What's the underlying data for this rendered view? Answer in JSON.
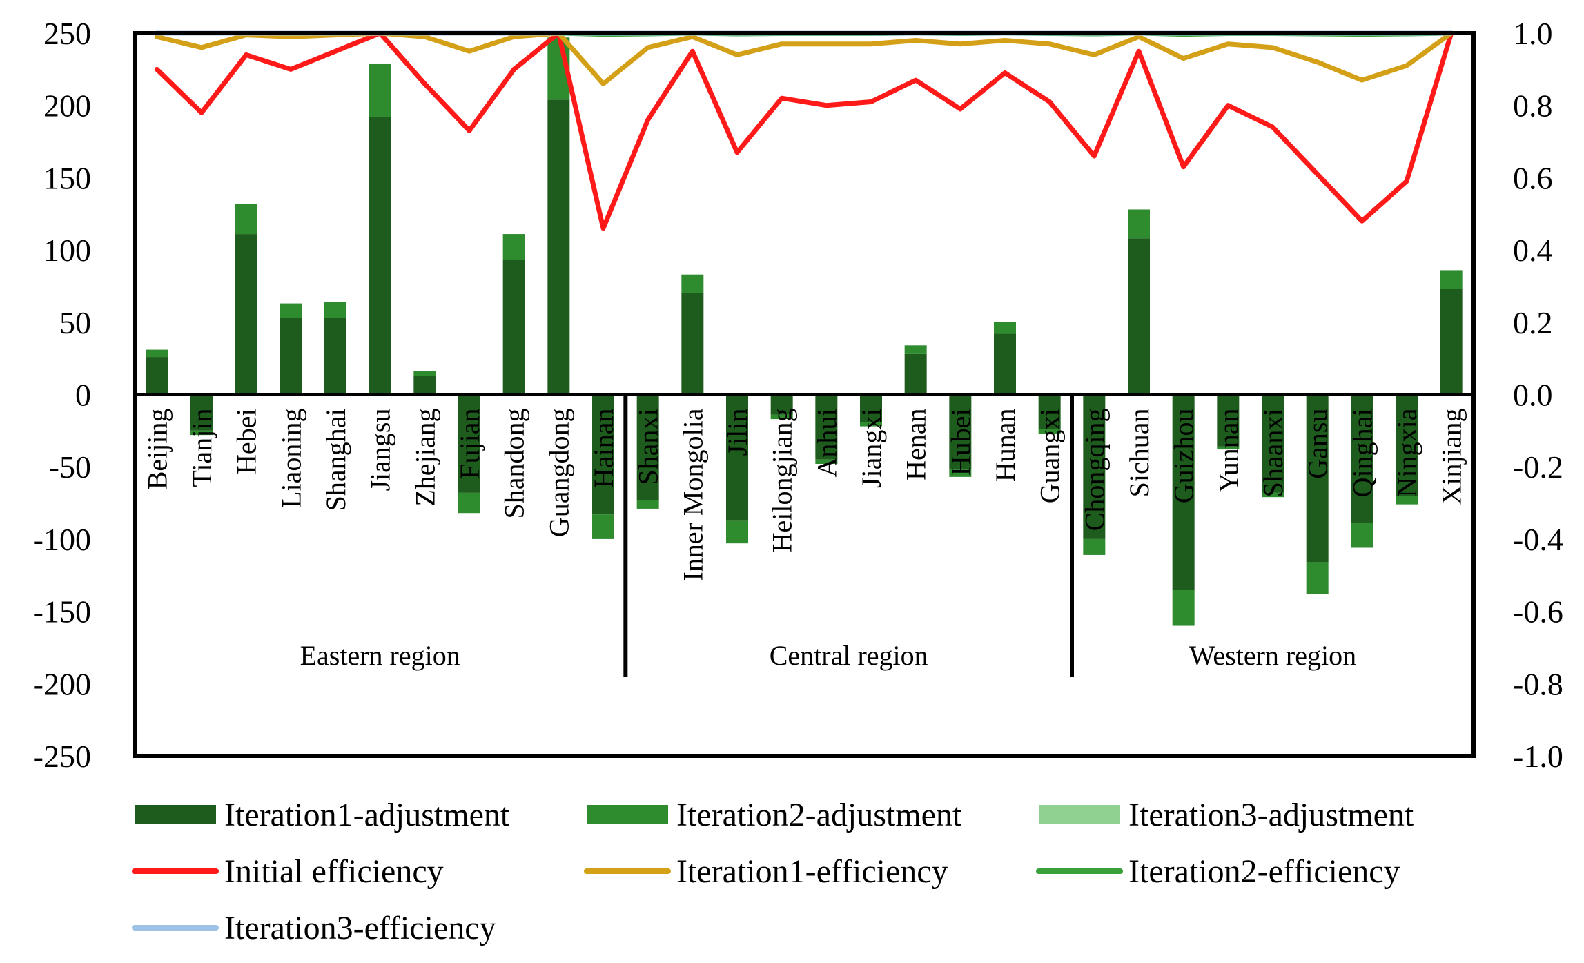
{
  "chart_data": {
    "type": "bar+line",
    "title": "",
    "xlabel": "",
    "ylabel": "",
    "ylabel_right": "",
    "ylim": [
      -250,
      250
    ],
    "ylim_right": [
      -1.0,
      1.0
    ],
    "y_ticks": [
      "250",
      "200",
      "150",
      "100",
      "50",
      "0",
      "-50",
      "-100",
      "-150",
      "-200",
      "-250"
    ],
    "y_ticks_right": [
      "1.0",
      "0.8",
      "0.6",
      "0.4",
      "0.2",
      "0.0",
      "-0.2",
      "-0.4",
      "-0.6",
      "-0.8",
      "-1.0"
    ],
    "categories": [
      "Beijing",
      "Tianjin",
      "Hebei",
      "Liaoning",
      "Shanghai",
      "Jiangsu",
      "Zhejiang",
      "Fujian",
      "Shandong",
      "Guangdong",
      "Hainan",
      "Shanxi",
      "Inner Mongolia",
      "Jilin",
      "Heilongjiang",
      "Anhui",
      "Jiangxi",
      "Henan",
      "Hubei",
      "Hunan",
      "Guangxi",
      "Chongqing",
      "Sichuan",
      "Guizhou",
      "Yunnan",
      "Shaanxi",
      "Gansu",
      "Qinghai",
      "Ningxia",
      "Xinjiang"
    ],
    "regions": [
      {
        "label": "Eastern region",
        "start": 0,
        "end": 10
      },
      {
        "label": "Central region",
        "start": 11,
        "end": 20
      },
      {
        "label": "Western region",
        "start": 21,
        "end": 29
      }
    ],
    "bar_series": [
      {
        "name": "Iteration1-adjustment",
        "color": "#1e5c1e",
        "values": [
          26,
          -25,
          111,
          53,
          53,
          192,
          13,
          -68,
          93,
          204,
          -83,
          -73,
          70,
          -87,
          -14,
          -45,
          -19,
          28,
          -52,
          42,
          -24,
          -100,
          108,
          -135,
          -36,
          -68,
          -116,
          -89,
          -70,
          73
        ]
      },
      {
        "name": "Iteration2-adjustment",
        "color": "#2e8b2e",
        "values": [
          5,
          -3,
          21,
          10,
          11,
          37,
          3,
          -14,
          18,
          43,
          -17,
          -6,
          13,
          -16,
          -3,
          -3,
          -3,
          6,
          -5,
          8,
          -3,
          -11,
          20,
          -25,
          -2,
          -3,
          -22,
          -17,
          -6,
          13
        ]
      },
      {
        "name": "Iteration3-adjustment",
        "color": "#90d090",
        "values": [
          0,
          0,
          0,
          0,
          0,
          0,
          0,
          0,
          0,
          0,
          0,
          0,
          0,
          0,
          0,
          0,
          0,
          0,
          0,
          0,
          0,
          0,
          0,
          0,
          0,
          0,
          0,
          0,
          0,
          0
        ]
      }
    ],
    "line_series": [
      {
        "name": "Initial efficiency",
        "color": "#ff1a1a",
        "axis": "right",
        "values": [
          0.9,
          0.78,
          0.94,
          0.9,
          0.95,
          1.0,
          0.86,
          0.73,
          0.9,
          1.0,
          0.46,
          0.76,
          0.95,
          0.67,
          0.82,
          0.8,
          0.81,
          0.87,
          0.79,
          0.89,
          0.81,
          0.66,
          0.95,
          0.63,
          0.8,
          0.74,
          0.61,
          0.48,
          0.59,
          1.0
        ]
      },
      {
        "name": "Iteration1-efficiency",
        "color": "#d4a017",
        "axis": "right",
        "values": [
          0.99,
          0.96,
          0.995,
          0.99,
          0.995,
          1.0,
          0.99,
          0.95,
          0.99,
          1.0,
          0.86,
          0.96,
          0.99,
          0.94,
          0.97,
          0.97,
          0.97,
          0.98,
          0.97,
          0.98,
          0.97,
          0.94,
          0.99,
          0.93,
          0.97,
          0.96,
          0.92,
          0.87,
          0.91,
          1.0
        ]
      },
      {
        "name": "Iteration2-efficiency",
        "color": "#3aa03a",
        "axis": "right",
        "values": [
          1.0,
          1.0,
          1.0,
          1.0,
          1.0,
          1.0,
          1.0,
          1.0,
          1.0,
          1.0,
          0.997,
          0.998,
          1.0,
          0.998,
          0.999,
          0.999,
          0.999,
          1.0,
          0.999,
          1.0,
          0.999,
          0.998,
          1.0,
          0.997,
          0.999,
          0.999,
          0.998,
          0.997,
          0.998,
          1.0
        ]
      },
      {
        "name": "Iteration3-efficiency",
        "color": "#9cc3e6",
        "axis": "right",
        "values": [
          1.0,
          1.0,
          1.0,
          1.0,
          1.0,
          1.0,
          1.0,
          1.0,
          1.0,
          1.0,
          1.0,
          1.0,
          1.0,
          1.0,
          1.0,
          1.0,
          1.0,
          1.0,
          1.0,
          1.0,
          1.0,
          1.0,
          1.0,
          1.0,
          1.0,
          1.0,
          1.0,
          1.0,
          1.0,
          1.0
        ]
      }
    ],
    "legend": [
      {
        "label": "Iteration1-adjustment",
        "kind": "bar",
        "color": "#1e5c1e"
      },
      {
        "label": "Iteration2-adjustment",
        "kind": "bar",
        "color": "#2e8b2e"
      },
      {
        "label": "Iteration3-adjustment",
        "kind": "bar",
        "color": "#90d090"
      },
      {
        "label": "Initial efficiency",
        "kind": "line",
        "color": "#ff1a1a"
      },
      {
        "label": "Iteration1-efficiency",
        "kind": "line",
        "color": "#d4a017"
      },
      {
        "label": "Iteration2-efficiency",
        "kind": "line",
        "color": "#3aa03a"
      },
      {
        "label": "Iteration3-efficiency",
        "kind": "line",
        "color": "#9cc3e6"
      }
    ],
    "legend_position": "bottom",
    "grid": false
  }
}
